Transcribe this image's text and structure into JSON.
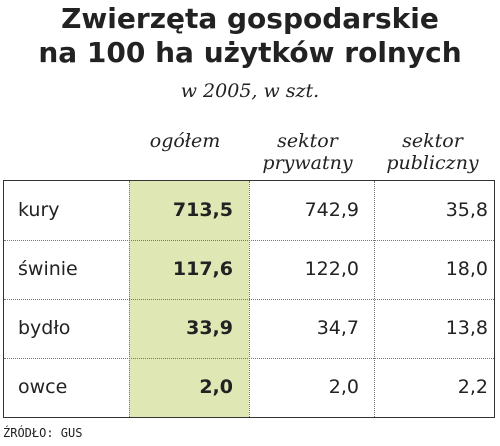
{
  "title_lines": [
    "Zwierzęta gospodarskie",
    "na 100 ha użytków rolnych"
  ],
  "subtitle": "w 2005, w szt.",
  "columns": [
    {
      "lines": [
        "ogółem",
        ""
      ]
    },
    {
      "lines": [
        "sektor",
        "prywatny"
      ]
    },
    {
      "lines": [
        "sektor",
        "publiczny"
      ]
    }
  ],
  "source": "ŹRÓDŁO: GUS",
  "colors": {
    "highlight": "#dfe8b4",
    "border": "#333333"
  },
  "chart_data": {
    "type": "table",
    "title": "Zwierzęta gospodarskie na 100 ha użytków rolnych",
    "subtitle": "w 2005, w szt.",
    "columns": [
      "ogółem",
      "sektor prywatny",
      "sektor publiczny"
    ],
    "rows": [
      {
        "label": "kury",
        "values": [
          "713,5",
          "742,9",
          "35,8"
        ]
      },
      {
        "label": "świnie",
        "values": [
          "117,6",
          "122,0",
          "18,0"
        ]
      },
      {
        "label": "bydło",
        "values": [
          "33,9",
          "34,7",
          "13,8"
        ]
      },
      {
        "label": "owce",
        "values": [
          "2,0",
          "2,0",
          "2,2"
        ]
      }
    ]
  }
}
